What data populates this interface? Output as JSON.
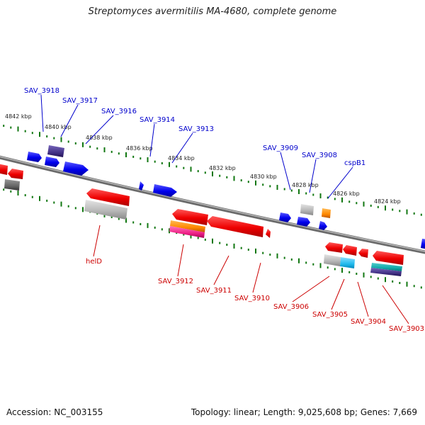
{
  "title": "Streptomyces avermitilis MA-4680, complete genome",
  "footer": {
    "accession": "Accession: NC_003155",
    "topology": "Topology: linear; Length: 9,025,608 bp; Genes: 7,669"
  },
  "scale_ticks": [
    "4842 kbp",
    "4840 kbp",
    "4838 kbp",
    "4836 kbp",
    "4834 kbp",
    "4832 kbp",
    "4830 kbp",
    "4828 kbp",
    "4826 kbp",
    "4824 kbp"
  ],
  "top_labels": [
    "SAV_3918",
    "SAV_3917",
    "SAV_3916",
    "SAV_3914",
    "SAV_3913",
    "SAV_3909",
    "SAV_3908",
    "cspB1"
  ],
  "bottom_labels": [
    "helD",
    "SAV_3912",
    "SAV_3911",
    "SAV_3910",
    "SAV_3906",
    "SAV_3905",
    "SAV_3904",
    "SAV_3903"
  ],
  "colors": {
    "top_label": "#0000cc",
    "bottom_label": "#cc0000",
    "forward_gene": "#0000ee",
    "reverse_gene": "#ee0000",
    "rna_gray": "#b0b0b0",
    "dark_gray": "#666666",
    "purple": "#443388",
    "orange": "#ff8800",
    "pink": "#ee2288",
    "cyan": "#22bbee",
    "teal": "#11aaaa",
    "tick_green": "#117711",
    "backbone": "#808080"
  }
}
